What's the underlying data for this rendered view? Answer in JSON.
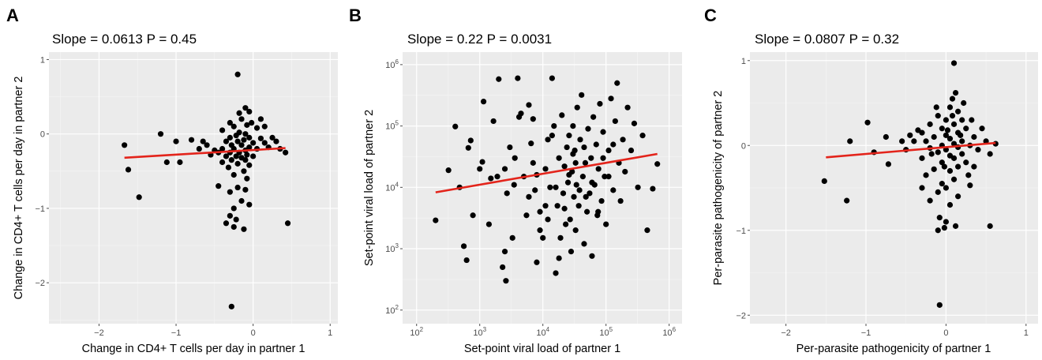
{
  "chart_data": [
    {
      "panel": "A",
      "type": "scatter",
      "title": "Slope = 0.0613  P = 0.45",
      "xlabel": "Change in CD4+ T cells per day in partner 1",
      "ylabel": "Change in CD4+ T cells per day in partner 2",
      "xscale": "linear",
      "yscale": "linear",
      "xlim": [
        -2.65,
        1.1
      ],
      "ylim": [
        -2.55,
        1.1
      ],
      "xticks": [
        {
          "value": -2,
          "label": "−2"
        },
        {
          "value": -1,
          "label": "−1"
        },
        {
          "value": 0,
          "label": "0"
        },
        {
          "value": 1,
          "label": "1"
        }
      ],
      "yticks": [
        {
          "value": -2,
          "label": "−2"
        },
        {
          "value": -1,
          "label": "−1"
        },
        {
          "value": 0,
          "label": "0"
        },
        {
          "value": 1,
          "label": "1"
        }
      ],
      "grid": true,
      "fit_line": {
        "color": "#e3241b",
        "x": [
          -1.67,
          0.42
        ],
        "y": [
          -0.32,
          -0.19
        ]
      },
      "points": [
        [
          -0.2,
          0.8
        ],
        [
          -0.1,
          0.35
        ],
        [
          -0.05,
          0.3
        ],
        [
          -0.15,
          0.2
        ],
        [
          -0.3,
          0.15
        ],
        [
          -0.25,
          0.1
        ],
        [
          -0.08,
          0.12
        ],
        [
          0.05,
          0.08
        ],
        [
          -0.4,
          0.05
        ],
        [
          -0.18,
          0.02
        ],
        [
          -0.1,
          0.0
        ],
        [
          -0.22,
          -0.02
        ],
        [
          -0.3,
          -0.05
        ],
        [
          -0.05,
          -0.05
        ],
        [
          0.1,
          -0.06
        ],
        [
          -0.12,
          -0.08
        ],
        [
          -0.35,
          -0.1
        ],
        [
          -0.2,
          -0.1
        ],
        [
          0.0,
          -0.12
        ],
        [
          -0.28,
          -0.15
        ],
        [
          -0.15,
          -0.15
        ],
        [
          0.15,
          -0.12
        ],
        [
          -0.05,
          -0.18
        ],
        [
          -0.4,
          -0.2
        ],
        [
          -0.25,
          -0.2
        ],
        [
          -0.1,
          -0.22
        ],
        [
          0.05,
          -0.2
        ],
        [
          -0.3,
          -0.25
        ],
        [
          -0.18,
          -0.25
        ],
        [
          -0.45,
          -0.25
        ],
        [
          0.2,
          -0.18
        ],
        [
          -0.08,
          -0.28
        ],
        [
          -0.22,
          -0.3
        ],
        [
          -0.55,
          -0.28
        ],
        [
          -0.35,
          -0.3
        ],
        [
          0.0,
          -0.3
        ],
        [
          -0.15,
          -0.32
        ],
        [
          -0.28,
          -0.35
        ],
        [
          -0.1,
          -0.35
        ],
        [
          -0.4,
          -0.38
        ],
        [
          -0.2,
          -0.4
        ],
        [
          -0.05,
          -0.42
        ],
        [
          -0.32,
          -0.45
        ],
        [
          -0.12,
          -0.5
        ],
        [
          -0.25,
          -0.55
        ],
        [
          -0.08,
          -0.6
        ],
        [
          -0.45,
          -0.7
        ],
        [
          -0.2,
          -0.72
        ],
        [
          -0.1,
          -0.75
        ],
        [
          -0.3,
          -0.78
        ],
        [
          -0.15,
          -0.9
        ],
        [
          -0.05,
          -0.95
        ],
        [
          -0.25,
          -1.0
        ],
        [
          -0.3,
          -1.1
        ],
        [
          -0.22,
          -1.15
        ],
        [
          -0.35,
          -1.2
        ],
        [
          -0.25,
          -1.25
        ],
        [
          -0.12,
          -1.28
        ],
        [
          -0.28,
          -2.32
        ],
        [
          -1.67,
          -0.15
        ],
        [
          -1.2,
          0.0
        ],
        [
          -1.62,
          -0.48
        ],
        [
          -1.0,
          -0.1
        ],
        [
          -0.8,
          -0.08
        ],
        [
          -1.12,
          -0.38
        ],
        [
          -0.95,
          -0.38
        ],
        [
          -1.48,
          -0.85
        ],
        [
          0.45,
          -1.2
        ],
        [
          0.3,
          -0.1
        ],
        [
          0.25,
          -0.05
        ],
        [
          0.35,
          -0.2
        ],
        [
          0.42,
          -0.25
        ],
        [
          -0.6,
          -0.15
        ],
        [
          -0.7,
          -0.2
        ],
        [
          -0.5,
          -0.22
        ],
        [
          -0.65,
          -0.1
        ],
        [
          0.1,
          0.2
        ],
        [
          0.15,
          0.1
        ],
        [
          -0.02,
          0.15
        ],
        [
          -0.18,
          0.28
        ]
      ]
    },
    {
      "panel": "B",
      "type": "scatter",
      "title": "Slope = 0.22  P = 0.0031",
      "xlabel": "Set-point viral load of partner 1",
      "ylabel": "Set-point viral load of partner 2",
      "xscale": "log10",
      "yscale": "log10",
      "xlim": [
        60,
        1600000
      ],
      "ylim": [
        60,
        1600000
      ],
      "xticks": [
        {
          "value": 100,
          "base": "10",
          "exp": "2"
        },
        {
          "value": 1000,
          "base": "10",
          "exp": "3"
        },
        {
          "value": 10000,
          "base": "10",
          "exp": "4"
        },
        {
          "value": 100000,
          "base": "10",
          "exp": "5"
        },
        {
          "value": 1000000,
          "base": "10",
          "exp": "6"
        }
      ],
      "yticks": [
        {
          "value": 100,
          "base": "10",
          "exp": "2"
        },
        {
          "value": 1000,
          "base": "10",
          "exp": "3"
        },
        {
          "value": 10000,
          "base": "10",
          "exp": "4"
        },
        {
          "value": 100000,
          "base": "10",
          "exp": "5"
        },
        {
          "value": 1000000,
          "base": "10",
          "exp": "6"
        }
      ],
      "grid": true,
      "fit_line": {
        "color": "#e3241b",
        "x": [
          200,
          650000
        ],
        "y": [
          8300,
          35000
        ]
      },
      "points": [
        [
          200,
          2900
        ],
        [
          320,
          19000
        ],
        [
          410,
          98000
        ],
        [
          480,
          10000
        ],
        [
          560,
          1100
        ],
        [
          620,
          650
        ],
        [
          660,
          44000
        ],
        [
          720,
          58000
        ],
        [
          780,
          3500
        ],
        [
          1000,
          20000
        ],
        [
          1100,
          26000
        ],
        [
          1150,
          250000
        ],
        [
          1400,
          2500
        ],
        [
          1500,
          14000
        ],
        [
          1650,
          120000
        ],
        [
          2000,
          580000
        ],
        [
          2300,
          500
        ],
        [
          2500,
          20000
        ],
        [
          2600,
          300
        ],
        [
          2700,
          8000
        ],
        [
          3000,
          45000
        ],
        [
          3300,
          1500
        ],
        [
          3600,
          30000
        ],
        [
          4000,
          600000
        ],
        [
          4200,
          140000
        ],
        [
          4500,
          160000
        ],
        [
          5000,
          15000
        ],
        [
          5500,
          3500
        ],
        [
          6000,
          7000
        ],
        [
          6500,
          52000
        ],
        [
          7000,
          25000
        ],
        [
          7500,
          9000
        ],
        [
          8000,
          16000
        ],
        [
          9000,
          4000
        ],
        [
          10000,
          1500
        ],
        [
          11000,
          20000
        ],
        [
          12000,
          60000
        ],
        [
          13000,
          10000
        ],
        [
          14000,
          600000
        ],
        [
          15000,
          100000
        ],
        [
          16000,
          400
        ],
        [
          17000,
          5000
        ],
        [
          18000,
          30000
        ],
        [
          19000,
          1500
        ],
        [
          20000,
          150000
        ],
        [
          21000,
          8000
        ],
        [
          22000,
          22000
        ],
        [
          23000,
          2500
        ],
        [
          24000,
          45000
        ],
        [
          25000,
          12000
        ],
        [
          26000,
          70000
        ],
        [
          27000,
          3000
        ],
        [
          28000,
          900
        ],
        [
          29000,
          18000
        ],
        [
          30000,
          100000
        ],
        [
          31000,
          7000
        ],
        [
          32000,
          40000
        ],
        [
          33000,
          2000
        ],
        [
          34000,
          11000
        ],
        [
          35000,
          200000
        ],
        [
          37000,
          5000
        ],
        [
          39000,
          60000
        ],
        [
          41000,
          320000
        ],
        [
          43000,
          15000
        ],
        [
          45000,
          1200
        ],
        [
          47000,
          25000
        ],
        [
          50000,
          4000
        ],
        [
          52000,
          90000
        ],
        [
          55000,
          8000
        ],
        [
          58000,
          30000
        ],
        [
          60000,
          760
        ],
        [
          63000,
          140000
        ],
        [
          66000,
          11000
        ],
        [
          70000,
          50000
        ],
        [
          73000,
          3500
        ],
        [
          76000,
          20000
        ],
        [
          80000,
          230000
        ],
        [
          85000,
          6000
        ],
        [
          90000,
          80000
        ],
        [
          95000,
          15000
        ],
        [
          100000,
          2500
        ],
        [
          110000,
          40000
        ],
        [
          120000,
          280000
        ],
        [
          130000,
          9000
        ],
        [
          140000,
          120000
        ],
        [
          150000,
          500000
        ],
        [
          160000,
          25000
        ],
        [
          170000,
          6000
        ],
        [
          185000,
          60000
        ],
        [
          200000,
          18000
        ],
        [
          220000,
          200000
        ],
        [
          250000,
          40000
        ],
        [
          280000,
          110000
        ],
        [
          320000,
          10000
        ],
        [
          380000,
          70000
        ],
        [
          450000,
          2000
        ],
        [
          550000,
          9500
        ],
        [
          650000,
          24000
        ],
        [
          6000,
          220000
        ],
        [
          9000,
          2000
        ],
        [
          12000,
          3000
        ],
        [
          8000,
          600
        ],
        [
          18000,
          700
        ],
        [
          30000,
          35000
        ],
        [
          45000,
          45000
        ],
        [
          2500,
          900
        ],
        [
          1900,
          15000
        ],
        [
          3500,
          11000
        ],
        [
          7000,
          130000
        ],
        [
          11000,
          5000
        ],
        [
          14000,
          70000
        ],
        [
          16000,
          10000
        ],
        [
          22000,
          4500
        ],
        [
          26000,
          16000
        ],
        [
          33000,
          25000
        ],
        [
          38000,
          9000
        ],
        [
          48000,
          7000
        ],
        [
          60000,
          12000
        ],
        [
          75000,
          4000
        ],
        [
          90000,
          30000
        ],
        [
          110000,
          15000
        ],
        [
          130000,
          50000
        ]
      ]
    },
    {
      "panel": "C",
      "type": "scatter",
      "title": "Slope = 0.0807  P = 0.32",
      "xlabel": "Per-parasite pathogenicity of partner 1",
      "ylabel": "Per-parasite pathogenicity of partner 2",
      "xscale": "linear",
      "yscale": "linear",
      "xlim": [
        -2.45,
        1.15
      ],
      "ylim": [
        -2.1,
        1.1
      ],
      "xticks": [
        {
          "value": -2,
          "label": "−2"
        },
        {
          "value": -1,
          "label": "−1"
        },
        {
          "value": 0,
          "label": "0"
        },
        {
          "value": 1,
          "label": "1"
        }
      ],
      "yticks": [
        {
          "value": -2,
          "label": "−2"
        },
        {
          "value": -1,
          "label": "−1"
        },
        {
          "value": 0,
          "label": "0"
        },
        {
          "value": 1,
          "label": "1"
        }
      ],
      "grid": true,
      "fit_line": {
        "color": "#e3241b",
        "x": [
          -1.5,
          0.62
        ],
        "y": [
          -0.14,
          0.03
        ]
      },
      "points": [
        [
          0.1,
          0.97
        ],
        [
          0.12,
          0.62
        ],
        [
          0.08,
          0.55
        ],
        [
          0.05,
          0.45
        ],
        [
          0.15,
          0.4
        ],
        [
          -0.1,
          0.35
        ],
        [
          0.0,
          0.3
        ],
        [
          0.2,
          0.3
        ],
        [
          0.32,
          0.3
        ],
        [
          -0.2,
          0.25
        ],
        [
          0.1,
          0.25
        ],
        [
          0.25,
          0.2
        ],
        [
          -0.05,
          0.2
        ],
        [
          -0.3,
          0.15
        ],
        [
          0.15,
          0.15
        ],
        [
          0.0,
          0.12
        ],
        [
          0.35,
          0.1
        ],
        [
          -0.15,
          0.1
        ],
        [
          0.05,
          0.08
        ],
        [
          0.2,
          0.05
        ],
        [
          -0.25,
          0.05
        ],
        [
          -0.4,
          0.05
        ],
        [
          0.1,
          0.02
        ],
        [
          0.3,
          0.0
        ],
        [
          -0.05,
          0.0
        ],
        [
          0.15,
          -0.02
        ],
        [
          -0.2,
          -0.03
        ],
        [
          0.4,
          -0.05
        ],
        [
          0.0,
          -0.05
        ],
        [
          -0.1,
          -0.08
        ],
        [
          0.2,
          -0.1
        ],
        [
          0.05,
          -0.12
        ],
        [
          -0.3,
          -0.15
        ],
        [
          0.1,
          -0.15
        ],
        [
          -0.05,
          -0.2
        ],
        [
          0.25,
          -0.2
        ],
        [
          0.15,
          -0.25
        ],
        [
          -0.15,
          -0.28
        ],
        [
          0.05,
          -0.3
        ],
        [
          -0.25,
          -0.35
        ],
        [
          0.1,
          -0.4
        ],
        [
          -0.05,
          -0.45
        ],
        [
          0.3,
          -0.47
        ],
        [
          0.0,
          -0.5
        ],
        [
          -0.1,
          -0.55
        ],
        [
          0.15,
          -0.6
        ],
        [
          -0.2,
          -0.65
        ],
        [
          0.05,
          -0.7
        ],
        [
          -0.08,
          -0.85
        ],
        [
          0.0,
          -0.9
        ],
        [
          0.12,
          -0.95
        ],
        [
          -0.1,
          -1.0
        ],
        [
          -0.02,
          -0.97
        ],
        [
          -0.08,
          -1.88
        ],
        [
          -1.52,
          -0.42
        ],
        [
          -1.24,
          -0.65
        ],
        [
          -1.2,
          0.05
        ],
        [
          -0.98,
          0.27
        ],
        [
          -0.9,
          -0.08
        ],
        [
          -0.75,
          0.1
        ],
        [
          -0.72,
          -0.22
        ],
        [
          0.62,
          0.02
        ],
        [
          0.55,
          -0.1
        ],
        [
          0.55,
          -0.95
        ],
        [
          -0.55,
          0.05
        ],
        [
          -0.45,
          0.12
        ],
        [
          -0.5,
          -0.05
        ],
        [
          -0.35,
          0.18
        ],
        [
          0.45,
          0.2
        ],
        [
          0.5,
          0.05
        ],
        [
          -0.12,
          0.45
        ],
        [
          0.22,
          0.5
        ],
        [
          0.08,
          0.35
        ],
        [
          -0.18,
          -0.1
        ],
        [
          0.28,
          -0.35
        ],
        [
          0.35,
          -0.25
        ],
        [
          -0.3,
          -0.5
        ],
        [
          0.18,
          0.12
        ],
        [
          0.02,
          0.18
        ],
        [
          -0.02,
          -0.25
        ]
      ]
    }
  ]
}
